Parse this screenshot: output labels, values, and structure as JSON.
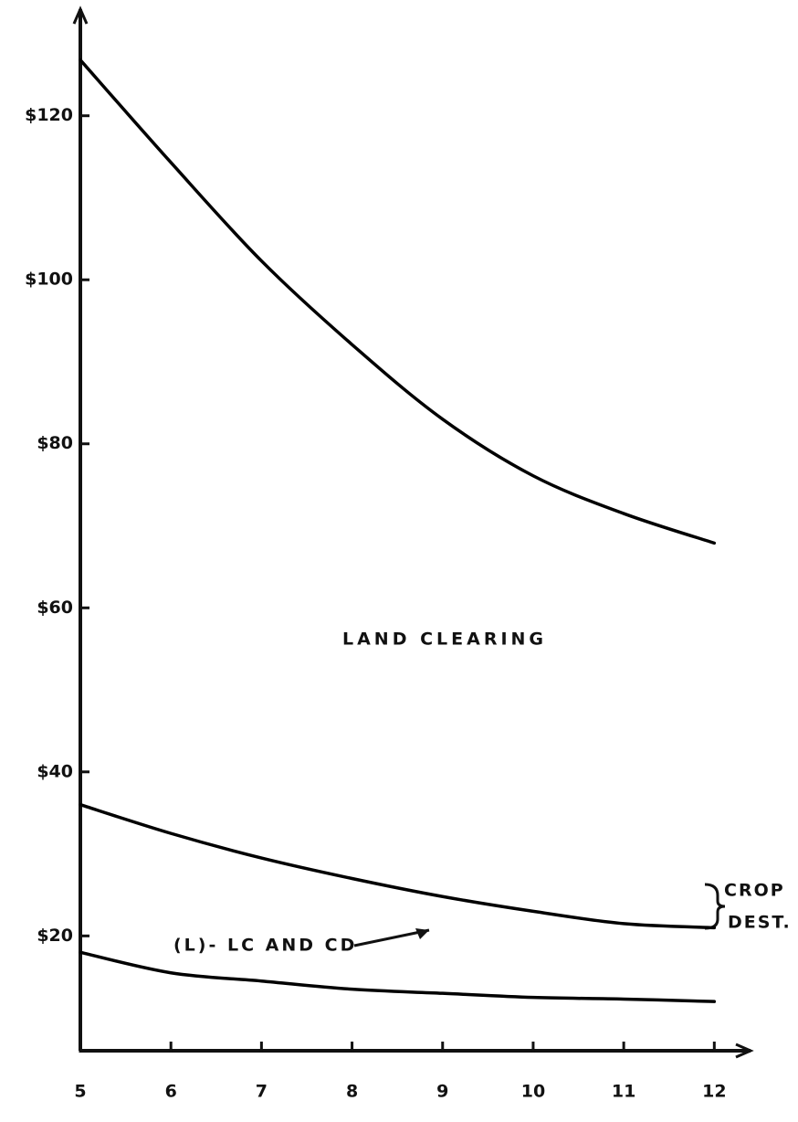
{
  "chart_data": {
    "type": "line",
    "x": [
      5,
      6,
      7,
      8,
      9,
      10,
      11,
      12
    ],
    "series": [
      {
        "color": "#000000",
        "values": [
          126.8,
          114.3,
          102.3,
          92.1,
          83,
          76.1,
          71.5,
          67.9
        ]
      },
      {
        "color": "#000000",
        "values": [
          36,
          32.5,
          29.5,
          27,
          24.8,
          23,
          21.5,
          21
        ]
      },
      {
        "color": "#000000",
        "values": [
          18,
          15.5,
          14.5,
          13.5,
          13,
          12.5,
          12.3,
          12
        ]
      }
    ],
    "xlim": [
      5,
      12.4
    ],
    "xticks": [
      5,
      6,
      7,
      8,
      9,
      10,
      11,
      12
    ],
    "ylim": [
      6,
      133
    ],
    "yticks": [
      {
        "value": 20,
        "label": "$20"
      },
      {
        "value": 40,
        "label": "$40"
      },
      {
        "value": 60,
        "label": "$60"
      },
      {
        "value": 80,
        "label": "$80"
      },
      {
        "value": 100,
        "label": "$100"
      },
      {
        "value": 120,
        "label": "$120"
      }
    ],
    "annotations": [
      "LAND CLEARING",
      "CROP",
      "DEST.",
      "(L)- LC AND CD"
    ]
  }
}
